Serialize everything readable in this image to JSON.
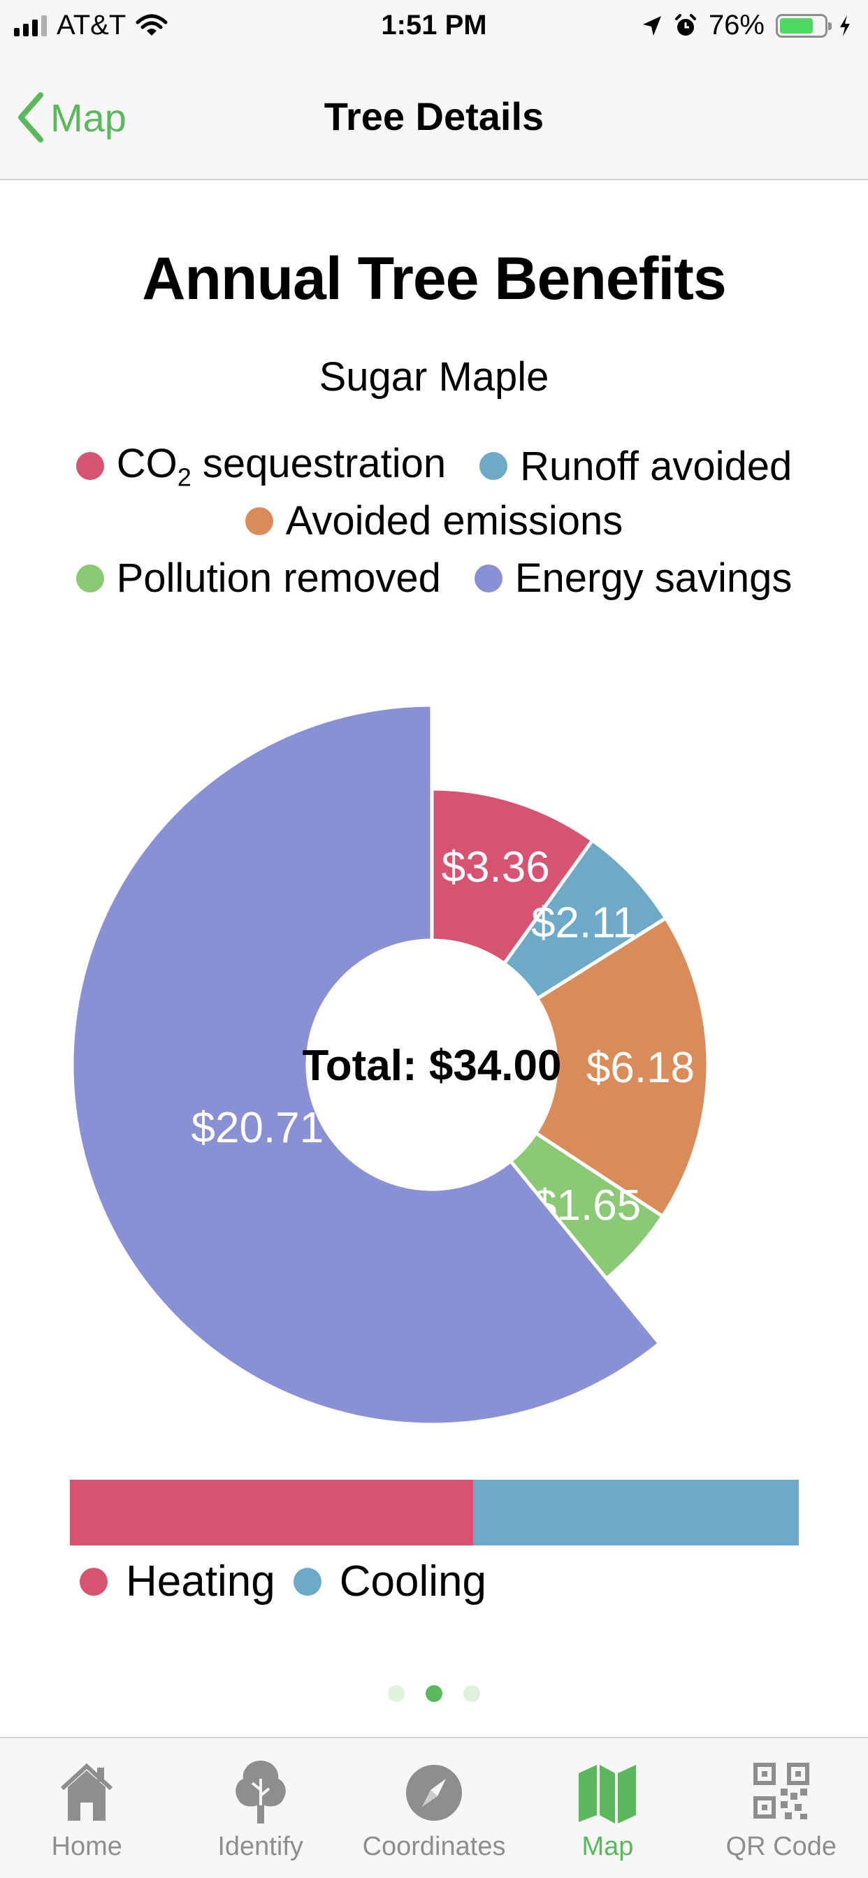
{
  "status_bar": {
    "carrier": "AT&T",
    "time": "1:51 PM",
    "battery": "76%",
    "battery_level": 0.76
  },
  "nav": {
    "back_label": "Map",
    "title": "Tree Details"
  },
  "chart_data": {
    "type": "pie",
    "title": "Annual Tree Benefits",
    "subtitle": "Sugar Maple",
    "center_label": "Total: $34.00",
    "legend_placement": "top",
    "legend": [
      {
        "name": "CO",
        "sub": "2",
        "suffix": " sequestration",
        "color": "#d65472"
      },
      {
        "name": "Runoff avoided",
        "color": "#6eaac7"
      },
      {
        "name": "Avoided emissions",
        "color": "#d98c5a"
      },
      {
        "name": "Pollution removed",
        "color": "#8cc974"
      },
      {
        "name": "Energy savings",
        "color": "#8a90d4"
      }
    ],
    "slices": [
      {
        "label": "$3.36",
        "value": 3.36,
        "color": "#d65472"
      },
      {
        "label": "$2.11",
        "value": 2.11,
        "color": "#6eaac7"
      },
      {
        "label": "$6.18",
        "value": 6.18,
        "color": "#d98c5a"
      },
      {
        "label": "$1.65",
        "value": 1.65,
        "color": "#8cc974"
      },
      {
        "label": "$20.71",
        "value": 20.71,
        "color": "#8a90d4"
      }
    ]
  },
  "energy_split": {
    "segments": [
      {
        "name": "Heating",
        "value": 0.553,
        "color": "#d65472"
      },
      {
        "name": "Cooling",
        "value": 0.447,
        "color": "#6eaac7"
      }
    ]
  },
  "pager": {
    "count": 3,
    "active": 1
  },
  "tabs": [
    {
      "label": "Home",
      "icon": "home-icon"
    },
    {
      "label": "Identify",
      "icon": "tree-icon"
    },
    {
      "label": "Coordinates",
      "icon": "compass-icon"
    },
    {
      "label": "Map",
      "icon": "map-icon",
      "active": true
    },
    {
      "label": "QR Code",
      "icon": "qr-code-icon"
    }
  ]
}
